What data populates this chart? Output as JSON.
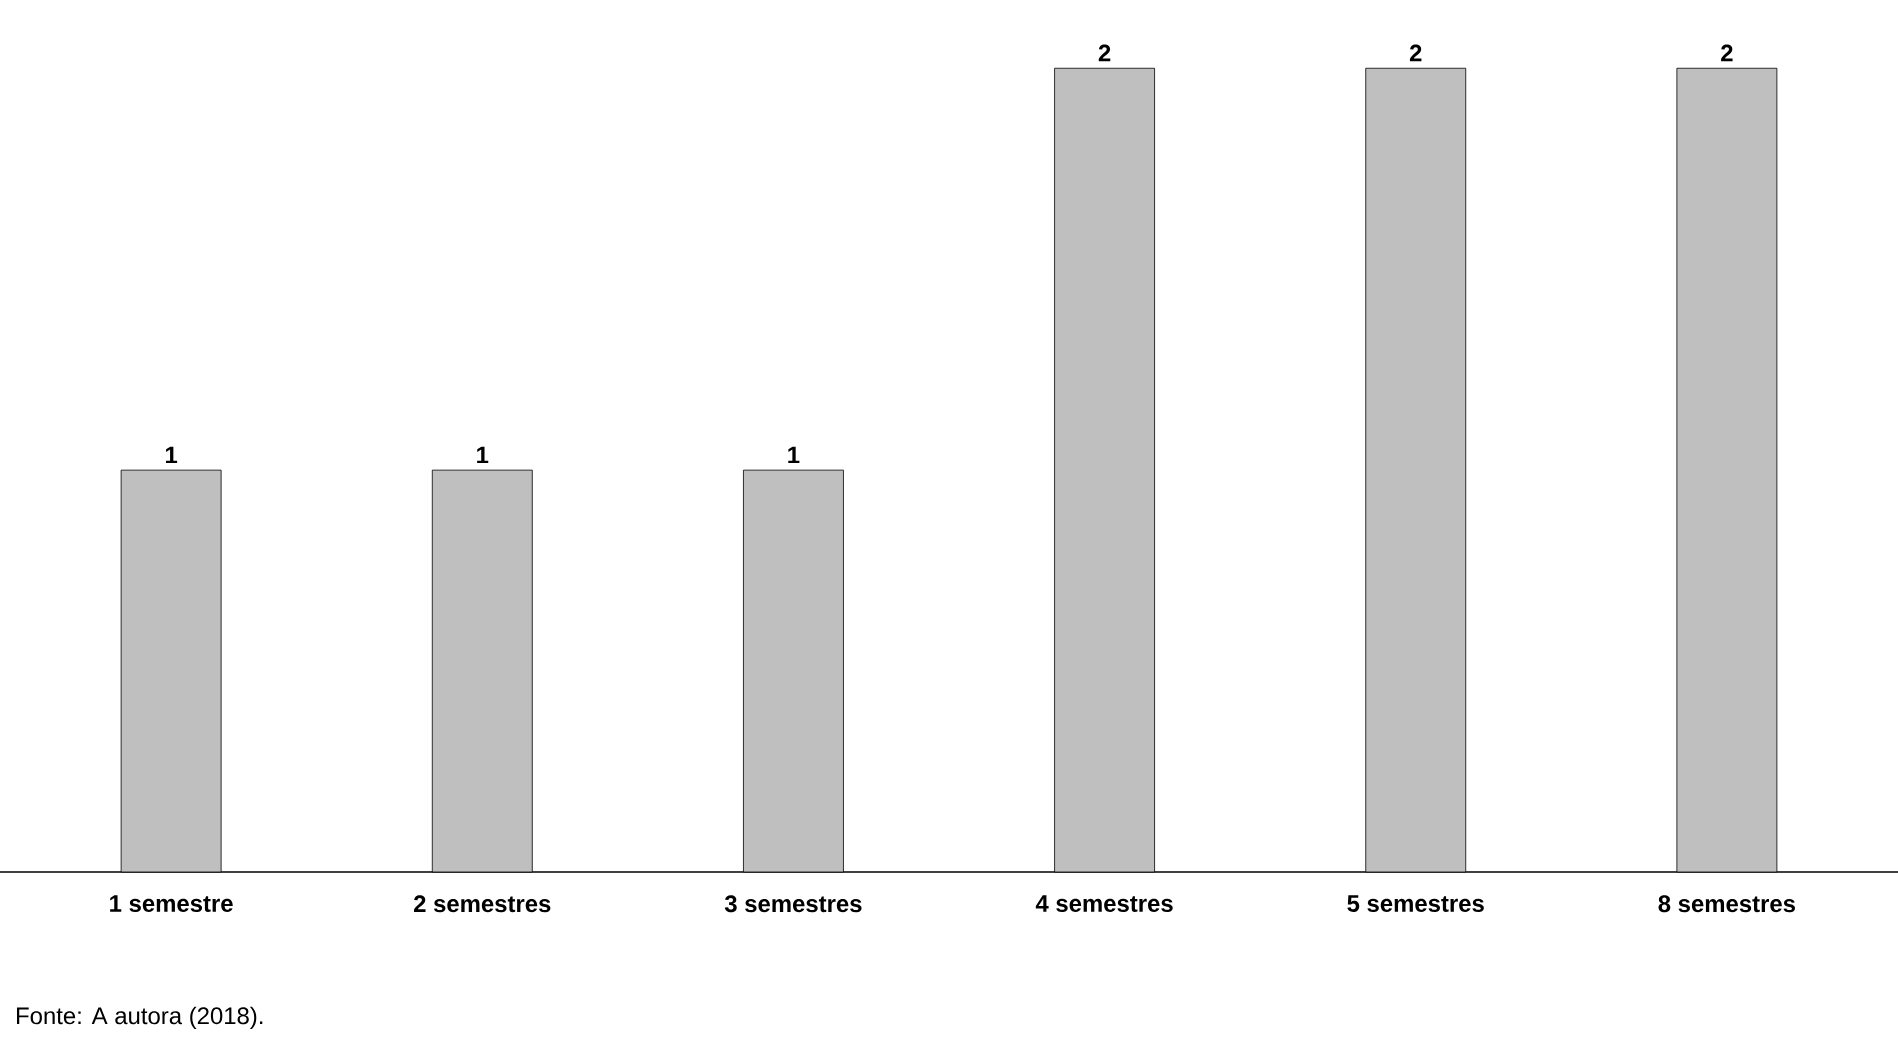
{
  "chart_data": {
    "type": "bar",
    "categories": [
      "1 semestre",
      "2 semestres",
      "3 semestres",
      "4 semestres",
      "5 semestres",
      "8 semestres"
    ],
    "values": [
      1,
      1,
      1,
      2,
      2,
      2
    ],
    "color": "#bfbfbf",
    "data_labels": true,
    "grid": false,
    "tick_labels": "x",
    "annotations": [
      "Fonte: A autora (2018)."
    ]
  }
}
